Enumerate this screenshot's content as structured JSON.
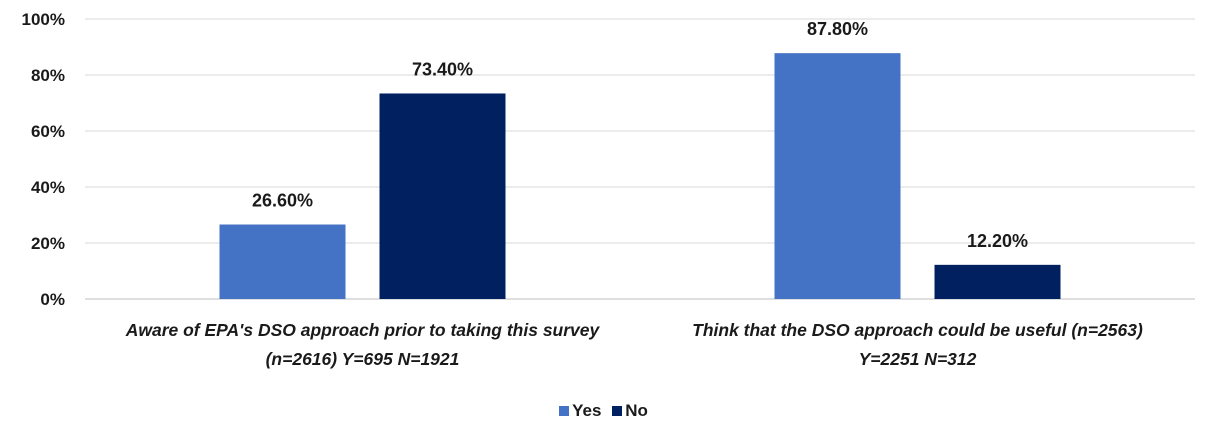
{
  "chart_data": {
    "type": "bar",
    "categories": [
      [
        "Aware of EPA's DSO approach prior to taking this survey",
        "(n=2616) Y=695 N=1921"
      ],
      [
        "Think that the DSO approach could be useful (n=2563)",
        "Y=2251 N=312"
      ]
    ],
    "series": [
      {
        "name": "Yes",
        "values": [
          26.6,
          87.8
        ],
        "labels": [
          "26.60%",
          "87.80%"
        ],
        "color": "#4472C4"
      },
      {
        "name": "No",
        "values": [
          73.4,
          12.2
        ],
        "labels": [
          "73.40%",
          "12.20%"
        ],
        "color": "#002060"
      }
    ],
    "y_ticks": [
      "0%",
      "20%",
      "40%",
      "60%",
      "80%",
      "100%"
    ],
    "ylim": [
      0,
      100
    ],
    "grid": true,
    "legend_position": "bottom"
  }
}
